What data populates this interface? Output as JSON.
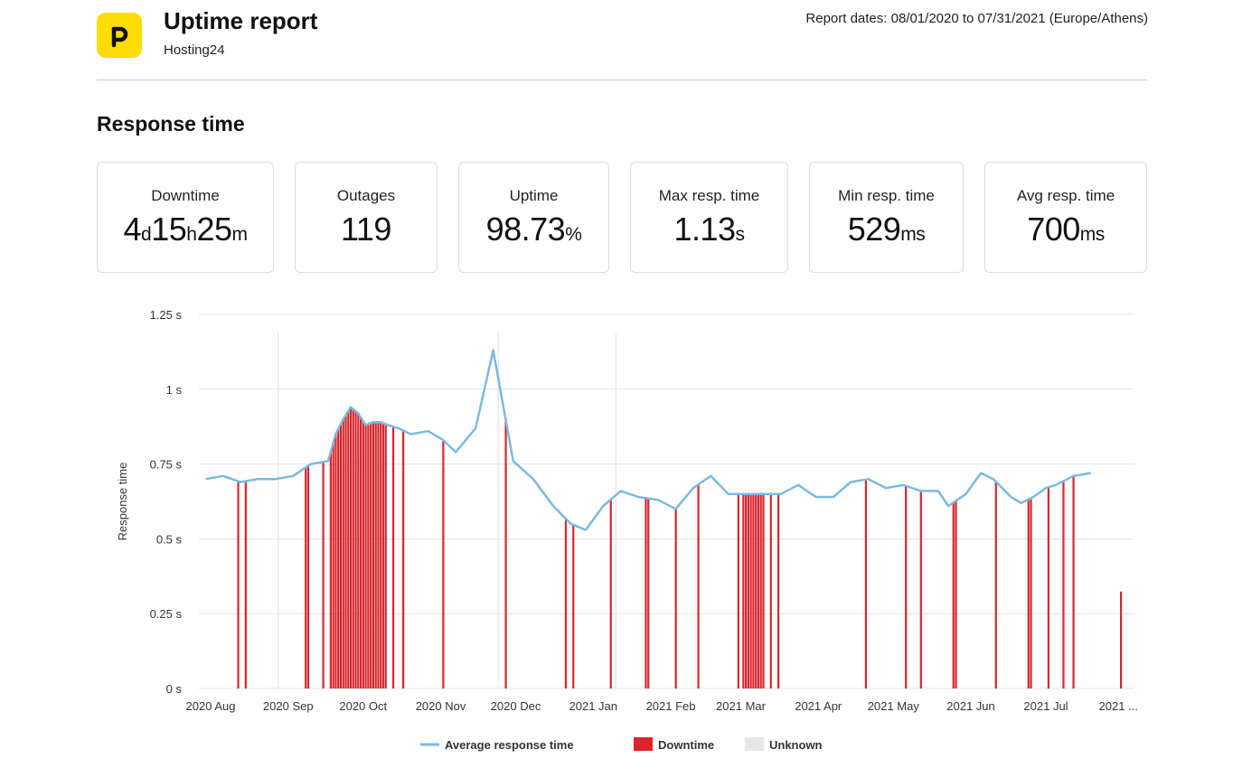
{
  "header": {
    "logo_icon": "p-logo-icon",
    "logo_color": "#ffdd00",
    "title": "Uptime report",
    "subtitle": "Hosting24",
    "report_dates": "Report dates: 08/01/2020 to 07/31/2021 (Europe/Athens)"
  },
  "section_title": "Response time",
  "stats": [
    {
      "label": "Downtime",
      "parts": [
        [
          "4",
          "d"
        ],
        [
          "15",
          "h"
        ],
        [
          "25",
          "m"
        ]
      ]
    },
    {
      "label": "Outages",
      "parts": [
        [
          "119",
          ""
        ]
      ]
    },
    {
      "label": "Uptime",
      "parts": [
        [
          "98.73",
          "%"
        ]
      ]
    },
    {
      "label": "Max resp. time",
      "parts": [
        [
          "1.13",
          "s"
        ]
      ]
    },
    {
      "label": "Min resp. time",
      "parts": [
        [
          "529",
          "ms"
        ]
      ]
    },
    {
      "label": "Avg resp. time",
      "parts": [
        [
          "700",
          "ms"
        ]
      ]
    }
  ],
  "chart_data": {
    "type": "line",
    "ylabel": "Response time",
    "ylim": [
      0,
      1.25
    ],
    "yticks": [
      "0 s",
      "0.25 s",
      "0.5 s",
      "0.75 s",
      "1 s",
      "1.25 s"
    ],
    "ytick_values": [
      0,
      0.25,
      0.5,
      0.75,
      1,
      1.25
    ],
    "grid": true,
    "x_start": "2020-08-01",
    "x_end": "2021-07-31",
    "xticks": [
      {
        "date": "2020-08-01",
        "label": "2020 Aug"
      },
      {
        "date": "2020-09-01",
        "label": "2020 Sep"
      },
      {
        "date": "2020-10-01",
        "label": "2020 Oct"
      },
      {
        "date": "2020-11-01",
        "label": "2020 Nov"
      },
      {
        "date": "2020-12-01",
        "label": "2020 Dec"
      },
      {
        "date": "2021-01-01",
        "label": "2021 Jan"
      },
      {
        "date": "2021-02-01",
        "label": "2021 Feb"
      },
      {
        "date": "2021-03-01",
        "label": "2021 Mar"
      },
      {
        "date": "2021-04-01",
        "label": "2021 Apr"
      },
      {
        "date": "2021-05-01",
        "label": "2021 May"
      },
      {
        "date": "2021-06-01",
        "label": "2021 Jun"
      },
      {
        "date": "2021-07-01",
        "label": "2021 Jul"
      },
      {
        "date": "2021-07-30",
        "label": "2021 ..."
      }
    ],
    "legend": {
      "position": "bottom",
      "items": [
        {
          "name": "Average response time",
          "color": "#7cb9e0",
          "kind": "line"
        },
        {
          "name": "Downtime",
          "color": "#d9262c",
          "kind": "bar"
        },
        {
          "name": "Unknown",
          "color": "#e6e6e6",
          "kind": "bar"
        }
      ]
    },
    "series": [
      {
        "name": "Average response time",
        "color": "#7cb9e0",
        "x": [
          "2020-07-30",
          "2020-08-06",
          "2020-08-13",
          "2020-08-20",
          "2020-08-27",
          "2020-09-03",
          "2020-09-10",
          "2020-09-17",
          "2020-09-20",
          "2020-09-23",
          "2020-09-26",
          "2020-09-29",
          "2020-10-02",
          "2020-10-05",
          "2020-10-08",
          "2020-10-11",
          "2020-10-15",
          "2020-10-20",
          "2020-10-27",
          "2020-11-02",
          "2020-11-07",
          "2020-11-15",
          "2020-11-22",
          "2020-11-30",
          "2020-12-08",
          "2020-12-16",
          "2020-12-23",
          "2020-12-29",
          "2021-01-05",
          "2021-01-12",
          "2021-01-19",
          "2021-01-27",
          "2021-02-03",
          "2021-02-10",
          "2021-02-17",
          "2021-02-24",
          "2021-03-03",
          "2021-03-10",
          "2021-03-17",
          "2021-03-24",
          "2021-03-31",
          "2021-04-07",
          "2021-04-14",
          "2021-04-21",
          "2021-04-28",
          "2021-05-05",
          "2021-05-12",
          "2021-05-19",
          "2021-05-23",
          "2021-05-30",
          "2021-06-05",
          "2021-06-10",
          "2021-06-17",
          "2021-06-21",
          "2021-06-26",
          "2021-07-01",
          "2021-07-05",
          "2021-07-12",
          "2021-07-19"
        ],
        "values": [
          0.7,
          0.71,
          0.69,
          0.7,
          0.7,
          0.71,
          0.75,
          0.76,
          0.85,
          0.9,
          0.94,
          0.92,
          0.88,
          0.89,
          0.89,
          0.88,
          0.87,
          0.85,
          0.86,
          0.83,
          0.79,
          0.87,
          1.13,
          0.76,
          0.7,
          0.61,
          0.55,
          0.53,
          0.61,
          0.66,
          0.64,
          0.63,
          0.6,
          0.67,
          0.71,
          0.65,
          0.65,
          0.65,
          0.65,
          0.68,
          0.64,
          0.64,
          0.69,
          0.7,
          0.67,
          0.68,
          0.66,
          0.66,
          0.61,
          0.65,
          0.72,
          0.7,
          0.64,
          0.62,
          0.64,
          0.67,
          0.68,
          0.71,
          0.72
        ]
      }
    ],
    "downtime_dates": [
      "2020-08-12",
      "2020-08-15",
      "2020-09-08",
      "2020-09-09",
      "2020-09-15",
      "2020-09-18",
      "2020-09-19",
      "2020-09-20",
      "2020-09-21",
      "2020-09-22",
      "2020-09-23",
      "2020-09-24",
      "2020-09-25",
      "2020-09-26",
      "2020-09-27",
      "2020-09-28",
      "2020-09-29",
      "2020-09-30",
      "2020-10-01",
      "2020-10-02",
      "2020-10-03",
      "2020-10-04",
      "2020-10-05",
      "2020-10-06",
      "2020-10-07",
      "2020-10-08",
      "2020-10-09",
      "2020-10-10",
      "2020-10-13",
      "2020-10-17",
      "2020-11-02",
      "2020-11-27",
      "2020-12-21",
      "2020-12-24",
      "2021-01-08",
      "2021-01-22",
      "2021-01-23",
      "2021-02-03",
      "2021-02-12",
      "2021-02-28",
      "2021-03-02",
      "2021-03-03",
      "2021-03-04",
      "2021-03-05",
      "2021-03-06",
      "2021-03-07",
      "2021-03-08",
      "2021-03-09",
      "2021-03-10",
      "2021-03-13",
      "2021-03-16",
      "2021-04-20",
      "2021-05-06",
      "2021-05-12",
      "2021-05-25",
      "2021-05-26",
      "2021-06-11",
      "2021-06-24",
      "2021-06-25",
      "2021-07-02",
      "2021-07-08",
      "2021-07-12",
      "2021-07-31"
    ],
    "unknown_dates": [
      "2020-08-28",
      "2020-11-24",
      "2021-01-10"
    ]
  }
}
